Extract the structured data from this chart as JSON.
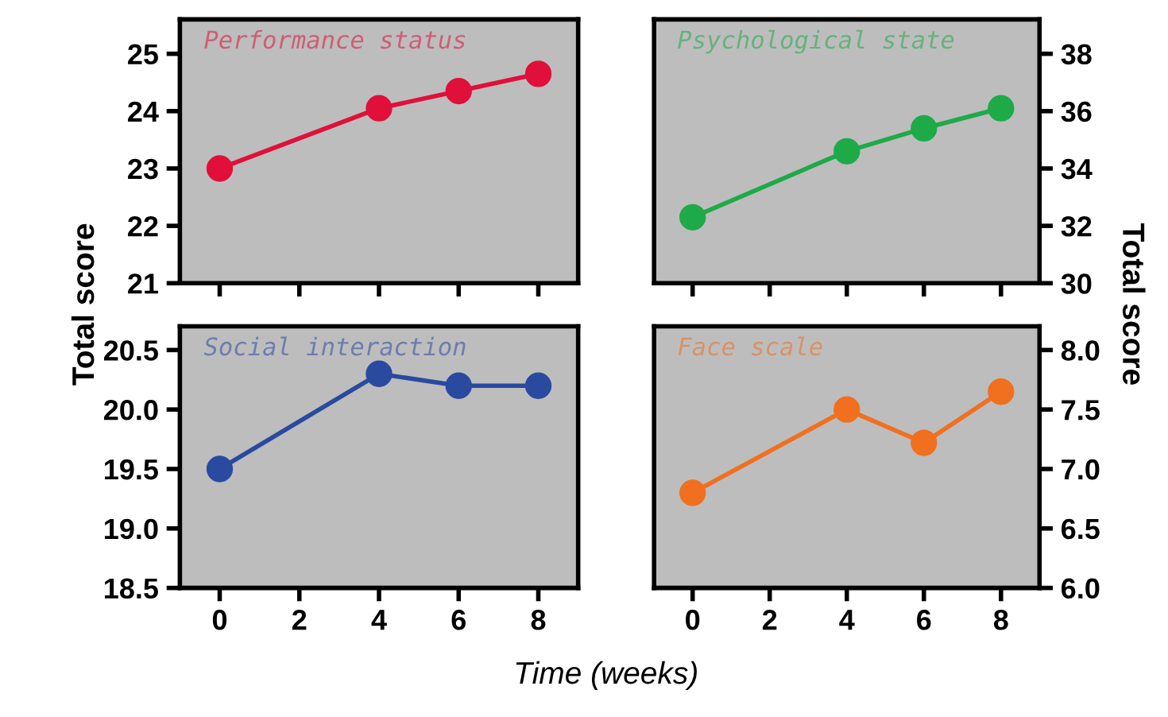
{
  "chart_data": [
    {
      "type": "line",
      "title": "Performance status",
      "ylabel": "Total score",
      "x": [
        0,
        4,
        6,
        8
      ],
      "series": [
        {
          "color": "#e0103a",
          "values": [
            23.0,
            24.05,
            24.35,
            24.65
          ]
        }
      ],
      "xlim": [
        -1,
        9
      ],
      "xticks": [
        0,
        2,
        4,
        6,
        8
      ],
      "ylim": [
        21,
        25.6
      ],
      "yticks": [
        21,
        22,
        23,
        24,
        25
      ],
      "tick_labels": "y",
      "marker": "circle",
      "grid": false
    },
    {
      "type": "line",
      "title": "Psychological state",
      "y2label": "Total score",
      "x": [
        0,
        4,
        6,
        8
      ],
      "series": [
        {
          "color": "#1faa48",
          "values": [
            32.3,
            34.6,
            35.4,
            36.1
          ],
          "axis": "y2"
        }
      ],
      "xlim": [
        -1,
        9
      ],
      "xticks": [
        0,
        2,
        4,
        6,
        8
      ],
      "y2lim": [
        30,
        39.2
      ],
      "y2ticks": [
        30,
        32,
        34,
        36,
        38
      ],
      "tick_labels": "y",
      "marker": "circle",
      "grid": false
    },
    {
      "type": "line",
      "title": "Social interaction",
      "xlabel": "Time (weeks)",
      "x": [
        0,
        4,
        6,
        8
      ],
      "series": [
        {
          "color": "#2a4aa0",
          "values": [
            19.5,
            20.3,
            20.2,
            20.2
          ]
        }
      ],
      "xlim": [
        -1,
        9
      ],
      "xticks": [
        0,
        2,
        4,
        6,
        8
      ],
      "ylim": [
        18.5,
        20.7
      ],
      "yticks": [
        {
          "value": 18.5,
          "label": "18.5"
        },
        {
          "value": 19.0,
          "label": "19.0"
        },
        {
          "value": 19.5,
          "label": "19.5"
        },
        {
          "value": 20.0,
          "label": "20.0"
        },
        {
          "value": 20.5,
          "label": "20.5"
        }
      ],
      "marker": "circle",
      "grid": false
    },
    {
      "type": "line",
      "title": "Face scale",
      "x": [
        0,
        4,
        6,
        8
      ],
      "series": [
        {
          "color": "#f07020",
          "values": [
            6.8,
            7.5,
            7.22,
            7.65
          ],
          "axis": "y2"
        }
      ],
      "xlim": [
        -1,
        9
      ],
      "xticks": [
        0,
        2,
        4,
        6,
        8
      ],
      "y2lim": [
        6.0,
        8.2
      ],
      "y2ticks": [
        {
          "value": 6.0,
          "label": "6.0"
        },
        {
          "value": 6.5,
          "label": "6.5"
        },
        {
          "value": 7.0,
          "label": "7.0"
        },
        {
          "value": 7.5,
          "label": "7.5"
        },
        {
          "value": 8.0,
          "label": "8.0"
        }
      ],
      "marker": "circle",
      "grid": false
    }
  ]
}
